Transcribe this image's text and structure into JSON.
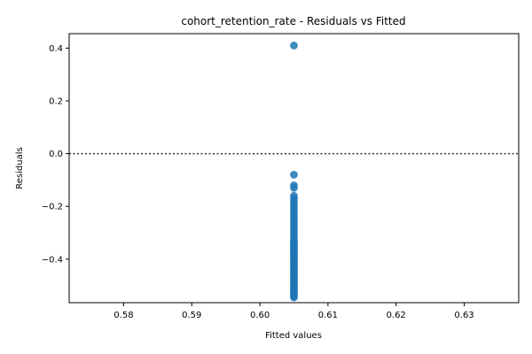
{
  "chart_data": {
    "type": "scatter",
    "title": "cohort_retention_rate - Residuals vs Fitted",
    "xlabel": "Fitted values",
    "ylabel": "Residuals",
    "xlim": [
      0.572,
      0.638
    ],
    "ylim": [
      -0.565,
      0.455
    ],
    "xticks": [
      0.58,
      0.59,
      0.6,
      0.61,
      0.62,
      0.63
    ],
    "xtick_labels": [
      "0.58",
      "0.59",
      "0.60",
      "0.61",
      "0.62",
      "0.63"
    ],
    "yticks": [
      -0.4,
      -0.2,
      0.0,
      0.2,
      0.4
    ],
    "ytick_labels": [
      "−0.4",
      "−0.2",
      "0.0",
      "0.2",
      "0.4"
    ],
    "reference_line": {
      "y": 0,
      "style": "dotted",
      "color": "#333333"
    },
    "grid": false,
    "marker_color": "#1f77b4",
    "series": [
      {
        "x": [
          0.605,
          0.605,
          0.605,
          0.605,
          0.605,
          0.605,
          0.605,
          0.605,
          0.605,
          0.605,
          0.605,
          0.605,
          0.605,
          0.605,
          0.605,
          0.605,
          0.605,
          0.605,
          0.605,
          0.605,
          0.605,
          0.605,
          0.605,
          0.605,
          0.605,
          0.605,
          0.605,
          0.605,
          0.605,
          0.605,
          0.605,
          0.605,
          0.605,
          0.605,
          0.605,
          0.605,
          0.605,
          0.605,
          0.605,
          0.605,
          0.605,
          0.605,
          0.605,
          0.605,
          0.605,
          0.605,
          0.605,
          0.605,
          0.605,
          0.605,
          0.605,
          0.605,
          0.605,
          0.605,
          0.605,
          0.605,
          0.605,
          0.605,
          0.605,
          0.605,
          0.605,
          0.605,
          0.605,
          0.605,
          0.605
        ],
        "y": [
          0.41,
          -0.08,
          -0.12,
          -0.13,
          -0.16,
          -0.17,
          -0.18,
          -0.19,
          -0.2,
          -0.21,
          -0.22,
          -0.23,
          -0.24,
          -0.25,
          -0.26,
          -0.27,
          -0.28,
          -0.29,
          -0.3,
          -0.31,
          -0.32,
          -0.33,
          -0.34,
          -0.35,
          -0.36,
          -0.37,
          -0.38,
          -0.39,
          -0.4,
          -0.41,
          -0.42,
          -0.43,
          -0.44,
          -0.45,
          -0.46,
          -0.47,
          -0.48,
          -0.49,
          -0.5,
          -0.51,
          -0.52,
          -0.53,
          -0.54,
          -0.545,
          -0.535,
          -0.525,
          -0.515,
          -0.505,
          -0.495,
          -0.485,
          -0.475,
          -0.465,
          -0.455,
          -0.445,
          -0.435,
          -0.425,
          -0.415,
          -0.405,
          -0.395,
          -0.385,
          -0.375,
          -0.365,
          -0.355,
          -0.345,
          -0.335
        ]
      }
    ]
  }
}
